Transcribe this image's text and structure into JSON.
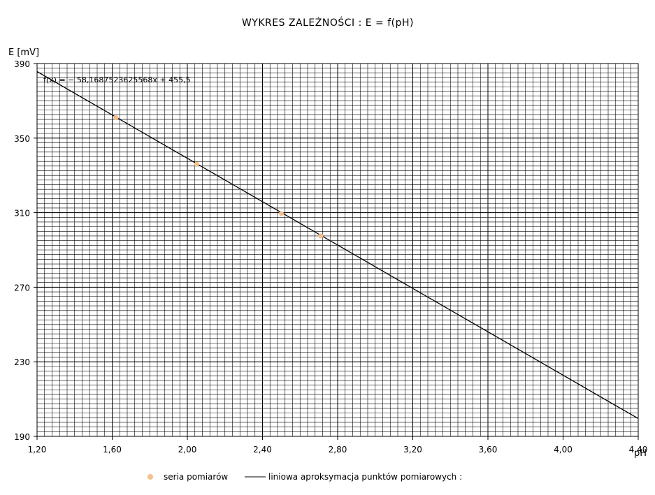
{
  "chart_data": {
    "type": "scatter",
    "title": "WYKRES ZALEŻNOŚCI :  E = f(pH)",
    "xlabel": "pH",
    "ylabel": "E [mV]",
    "xlim": [
      1.2,
      4.4
    ],
    "ylim": [
      190,
      390
    ],
    "x_ticks": [
      1.2,
      1.6,
      2.0,
      2.4,
      2.8,
      3.2,
      3.6,
      4.0,
      4.4
    ],
    "x_tick_labels": [
      "1,20",
      "1,60",
      "2,00",
      "2,40",
      "2,80",
      "3,20",
      "3,60",
      "4,00",
      "4,40"
    ],
    "y_ticks": [
      190,
      230,
      270,
      310,
      350,
      390
    ],
    "y_tick_labels": [
      "190",
      "230",
      "270",
      "310",
      "350",
      "390"
    ],
    "grid": true,
    "minor_grid_x_step": 0.04,
    "minor_grid_y_step": 2.5,
    "series": [
      {
        "name": "seria pomiarów",
        "kind": "scatter",
        "color": "#f5c08a",
        "x": [
          1.62,
          2.05,
          2.5,
          2.71
        ],
        "y": [
          361.0,
          336.0,
          309.5,
          297.5
        ]
      },
      {
        "name": "liniowa aproksymacja punktów pomiarowych :",
        "kind": "line",
        "color": "#000000",
        "slope": -58.1687523625568,
        "intercept": 455.5,
        "x": [
          1.2,
          4.4
        ]
      }
    ],
    "equation_annotation": "f(x) = − 58,1687523625568x + 455,5",
    "legend_position": "bottom"
  }
}
